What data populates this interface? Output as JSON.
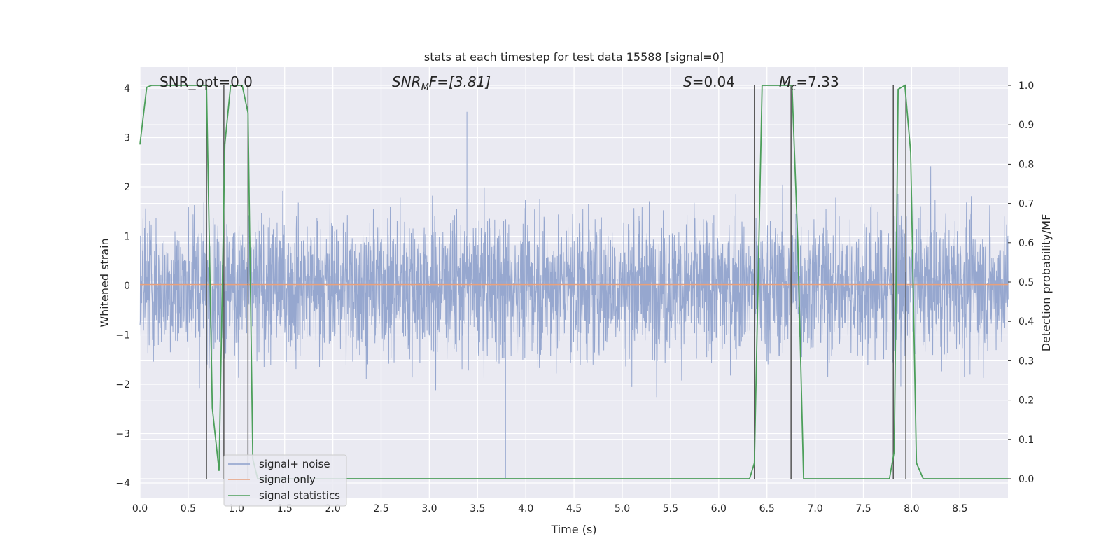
{
  "chart_data": {
    "type": "line",
    "title": "stats at each timestep for test data 15588 [signal=0]",
    "xlabel": "Time (s)",
    "ylabel_left": "Whitened strain",
    "ylabel_right": "Detection probability/MF",
    "xlim": [
      0,
      9
    ],
    "ylim_left": [
      -4.3,
      4.4
    ],
    "ylim_right": [
      -0.05,
      1.035
    ],
    "xticks": [
      "0.0",
      "0.5",
      "1.0",
      "1.5",
      "2.0",
      "2.5",
      "3.0",
      "3.5",
      "4.0",
      "4.5",
      "5.0",
      "5.5",
      "6.0",
      "6.5",
      "7.0",
      "7.5",
      "8.0",
      "8.5"
    ],
    "yticks_left": [
      "−4",
      "−3",
      "−2",
      "−1",
      "0",
      "1",
      "2",
      "3",
      "4"
    ],
    "yticks_right": [
      "0.0",
      "0.1",
      "0.2",
      "0.3",
      "0.4",
      "0.5",
      "0.6",
      "0.7",
      "0.8",
      "0.9",
      "1.0"
    ],
    "grid": true,
    "legend": {
      "placement": "lower-left",
      "entries": [
        {
          "label": "signal+ noise",
          "color": "#8da0cb"
        },
        {
          "label": "signal only",
          "color": "#e8a07c"
        },
        {
          "label": "signal statistics",
          "color": "#4c9f5a"
        }
      ]
    },
    "annotations": {
      "snr_opt": "SNR_opt=0.0",
      "snr_mf_main": "SNR",
      "snr_mf_sub": "M",
      "snr_mf_after": "F=[3.81]",
      "s_italic": "S",
      "s_val": "=0.04",
      "mc_main": "M",
      "mc_sub": "c",
      "mc_val": "=7.33"
    },
    "series": [
      {
        "name": "signal+ noise",
        "axis": "left",
        "description_style": "dense whitened noise, amplitude roughly within ±3",
        "sample_rate_hz": 2048,
        "duration_s": 9,
        "peak_max": 3.52,
        "peak_min": -3.9
      },
      {
        "name": "signal only",
        "axis": "left",
        "x": [
          0,
          9
        ],
        "y": [
          0.02,
          0.02
        ]
      },
      {
        "name": "signal statistics",
        "axis": "right",
        "x": [
          0.0,
          0.07,
          0.12,
          0.2,
          0.3,
          0.4,
          0.5,
          0.6,
          0.69,
          0.75,
          0.82,
          0.88,
          0.94,
          1.0,
          1.06,
          1.12,
          1.17,
          1.22,
          1.3,
          2.0,
          3.0,
          4.0,
          5.0,
          6.0,
          6.32,
          6.37,
          6.45,
          6.52,
          6.6,
          6.7,
          6.76,
          6.82,
          6.88,
          6.95,
          7.5,
          7.77,
          7.82,
          7.86,
          7.93,
          7.99,
          8.05,
          8.12,
          8.3,
          8.8,
          9.0
        ],
        "y": [
          0.85,
          0.995,
          1.0,
          1.0,
          1.0,
          1.0,
          1.0,
          1.0,
          1.0,
          0.18,
          0.02,
          0.85,
          1.0,
          1.0,
          1.0,
          0.93,
          0.05,
          0.0,
          0.0,
          0.0,
          0.0,
          0.0,
          0.0,
          0.0,
          0.0,
          0.04,
          1.0,
          1.0,
          1.0,
          1.0,
          1.0,
          0.6,
          0.0,
          0.0,
          0.0,
          0.0,
          0.07,
          0.99,
          1.0,
          0.83,
          0.04,
          0.0,
          0.0,
          0.0,
          0.0
        ]
      }
    ],
    "vlines_x": [
      0.69,
      0.87,
      1.12,
      6.37,
      6.75,
      7.81,
      7.94
    ]
  }
}
